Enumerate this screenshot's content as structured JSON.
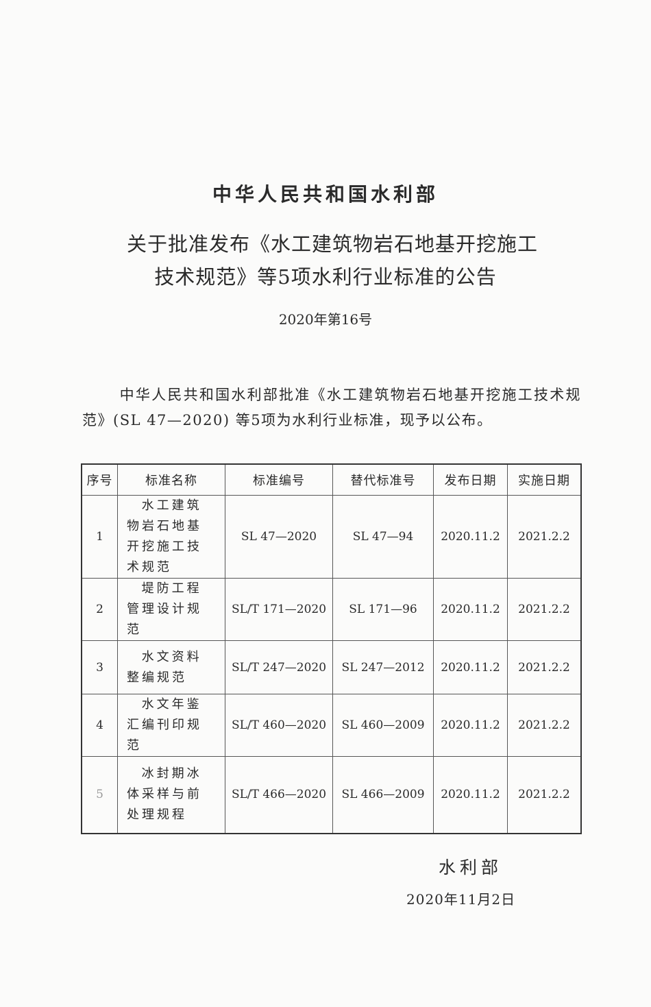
{
  "header": {
    "organization": "中华人民共和国水利部",
    "title_line1": "关于批准发布《水工建筑物岩石地基开挖施工",
    "title_line2": "技术规范》等5项水利行业标准的公告",
    "number": "2020年第16号"
  },
  "body": "中华人民共和国水利部批准《水工建筑物岩石地基开挖施工技术规范》(SL 47—2020) 等5项为水利行业标准，现予以公布。",
  "table": {
    "headers": [
      "序号",
      "标准名称",
      "标准编号",
      "替代标准号",
      "发布日期",
      "实施日期"
    ],
    "rows": [
      [
        "1",
        "水工建筑物岩石地基开挖施工技术规范",
        "SL 47—2020",
        "SL 47—94",
        "2020.11.2",
        "2021.2.2"
      ],
      [
        "2",
        "堤防工程管理设计规范",
        "SL/T 171—2020",
        "SL 171—96",
        "2020.11.2",
        "2021.2.2"
      ],
      [
        "3",
        "水文资料整编规范",
        "SL/T 247—2020",
        "SL 247—2012",
        "2020.11.2",
        "2021.2.2"
      ],
      [
        "4",
        "水文年鉴汇编刊印规范",
        "SL/T 460—2020",
        "SL 460—2009",
        "2020.11.2",
        "2021.2.2"
      ],
      [
        "5",
        "冰封期冰体采样与前处理规程",
        "SL/T 466—2020",
        "SL 466—2009",
        "2020.11.2",
        "2021.2.2"
      ]
    ]
  },
  "signature": {
    "issuer": "水利部",
    "date": "2020年11月2日"
  }
}
